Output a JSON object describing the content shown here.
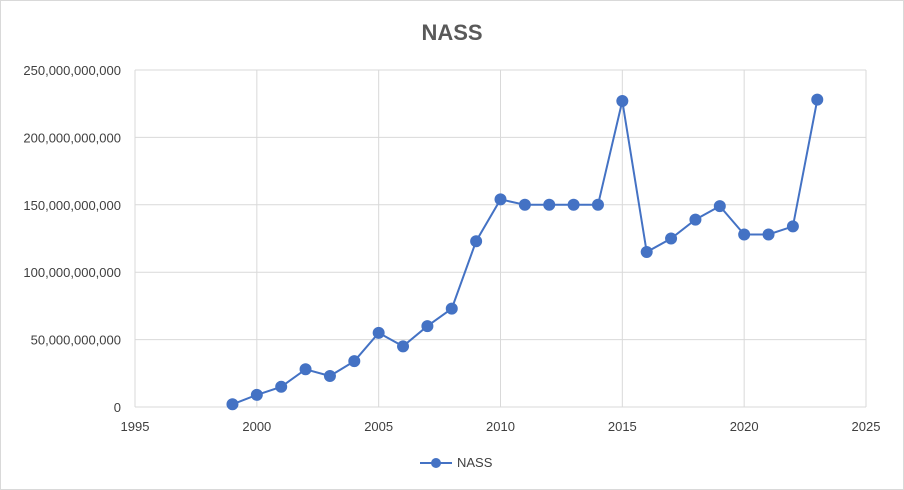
{
  "chart_data": {
    "type": "scatter",
    "title": "NASS",
    "xlabel": "",
    "ylabel": "",
    "series": [
      {
        "name": "NASS",
        "color": "#4472c4",
        "x": [
          1999,
          2000,
          2001,
          2002,
          2003,
          2004,
          2005,
          2006,
          2007,
          2008,
          2009,
          2010,
          2011,
          2012,
          2013,
          2014,
          2015,
          2016,
          2017,
          2018,
          2019,
          2020,
          2021,
          2022,
          2023
        ],
        "y": [
          2000000000,
          9000000000,
          15000000000,
          28000000000,
          23000000000,
          34000000000,
          55000000000,
          45000000000,
          60000000000,
          73000000000,
          123000000000,
          154000000000,
          150000000000,
          150000000000,
          150000000000,
          150000000000,
          227000000000,
          115000000000,
          125000000000,
          139000000000,
          149000000000,
          128000000000,
          128000000000,
          134000000000,
          228000000000
        ]
      }
    ],
    "xlim": [
      1995,
      2025
    ],
    "ylim": [
      0,
      250000000000
    ],
    "xticks": [
      "1995",
      "2000",
      "2005",
      "2010",
      "2015",
      "2020",
      "2025"
    ],
    "yticks": [
      "0",
      "50,000,000,000",
      "100,000,000,000",
      "150,000,000,000",
      "200,000,000,000",
      "250,000,000,000"
    ],
    "grid": true,
    "legend_position": "bottom"
  }
}
